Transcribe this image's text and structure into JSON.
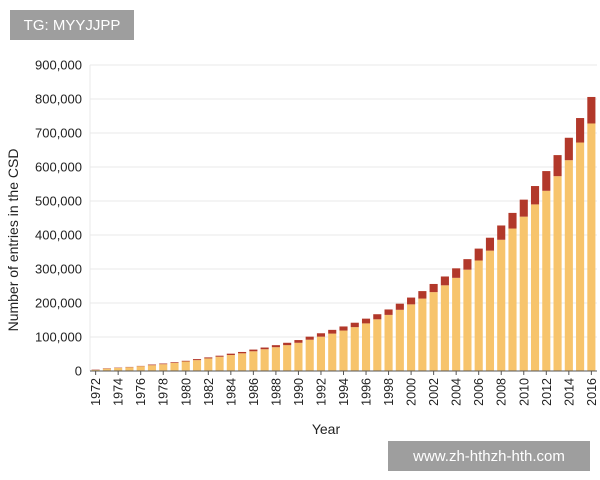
{
  "watermarks": {
    "top_left": "TG: MYYJJPP",
    "bottom_right": "www.zh-hthzh-hth.com"
  },
  "colors": {
    "bar_base": "#f7c46c",
    "bar_top": "#b2382a",
    "grid": "#e8e8e8",
    "axis": "#555555",
    "text": "#222222"
  },
  "chart_data": {
    "type": "bar",
    "stacked": true,
    "title": "",
    "xlabel": "Year",
    "ylabel": "Number of entries in the CSD",
    "ylim": [
      0,
      900000
    ],
    "y_ticks": [
      {
        "value": 0,
        "label": "0"
      },
      {
        "value": 100000,
        "label": "100,000"
      },
      {
        "value": 200000,
        "label": "200,000"
      },
      {
        "value": 300000,
        "label": "300,000"
      },
      {
        "value": 400000,
        "label": "400,000"
      },
      {
        "value": 500000,
        "label": "500,000"
      },
      {
        "value": 600000,
        "label": "600,000"
      },
      {
        "value": 700000,
        "label": "700,000"
      },
      {
        "value": 800000,
        "label": "800,000"
      },
      {
        "value": 900000,
        "label": "900,000"
      }
    ],
    "x_tick_labels": [
      "1972",
      "1974",
      "1976",
      "1978",
      "1980",
      "1982",
      "1984",
      "1986",
      "1988",
      "1990",
      "1992",
      "1994",
      "1996",
      "1998",
      "2000",
      "2002",
      "2004",
      "2006",
      "2008",
      "2010",
      "2012",
      "2014",
      "2016"
    ],
    "grid": true,
    "legend": "none",
    "categories": [
      "1972",
      "1973",
      "1974",
      "1975",
      "1976",
      "1977",
      "1978",
      "1979",
      "1980",
      "1981",
      "1982",
      "1983",
      "1984",
      "1985",
      "1986",
      "1987",
      "1988",
      "1989",
      "1990",
      "1991",
      "1992",
      "1993",
      "1994",
      "1995",
      "1996",
      "1997",
      "1998",
      "1999",
      "2000",
      "2001",
      "2002",
      "2003",
      "2004",
      "2005",
      "2006",
      "2007",
      "2008",
      "2009",
      "2010",
      "2011",
      "2012",
      "2013",
      "2014",
      "2015",
      "2016"
    ],
    "series": [
      {
        "values": [
          3000,
          7000,
          9000,
          11000,
          14000,
          17000,
          20000,
          24000,
          28000,
          32000,
          37000,
          42000,
          47000,
          52000,
          58000,
          64000,
          70000,
          76000,
          83000,
          92000,
          101000,
          110000,
          119000,
          129000,
          140000,
          152000,
          165000,
          180000,
          196000,
          213000,
          232000,
          252000,
          274000,
          298000,
          325000,
          354000,
          386000,
          419000,
          454000,
          490000,
          530000,
          573000,
          620000,
          672000,
          728000
        ]
      },
      {
        "values": [
          1000,
          1000,
          1000,
          1000,
          1000,
          2000,
          2000,
          2000,
          2000,
          3000,
          3000,
          3000,
          4000,
          4000,
          5000,
          5000,
          6000,
          7000,
          8000,
          9000,
          10000,
          11000,
          12000,
          13000,
          14000,
          15000,
          16000,
          18000,
          20000,
          22000,
          24000,
          26000,
          28000,
          31000,
          35000,
          38000,
          42000,
          46000,
          50000,
          54000,
          58000,
          62000,
          66000,
          72000,
          78000
        ]
      }
    ]
  }
}
